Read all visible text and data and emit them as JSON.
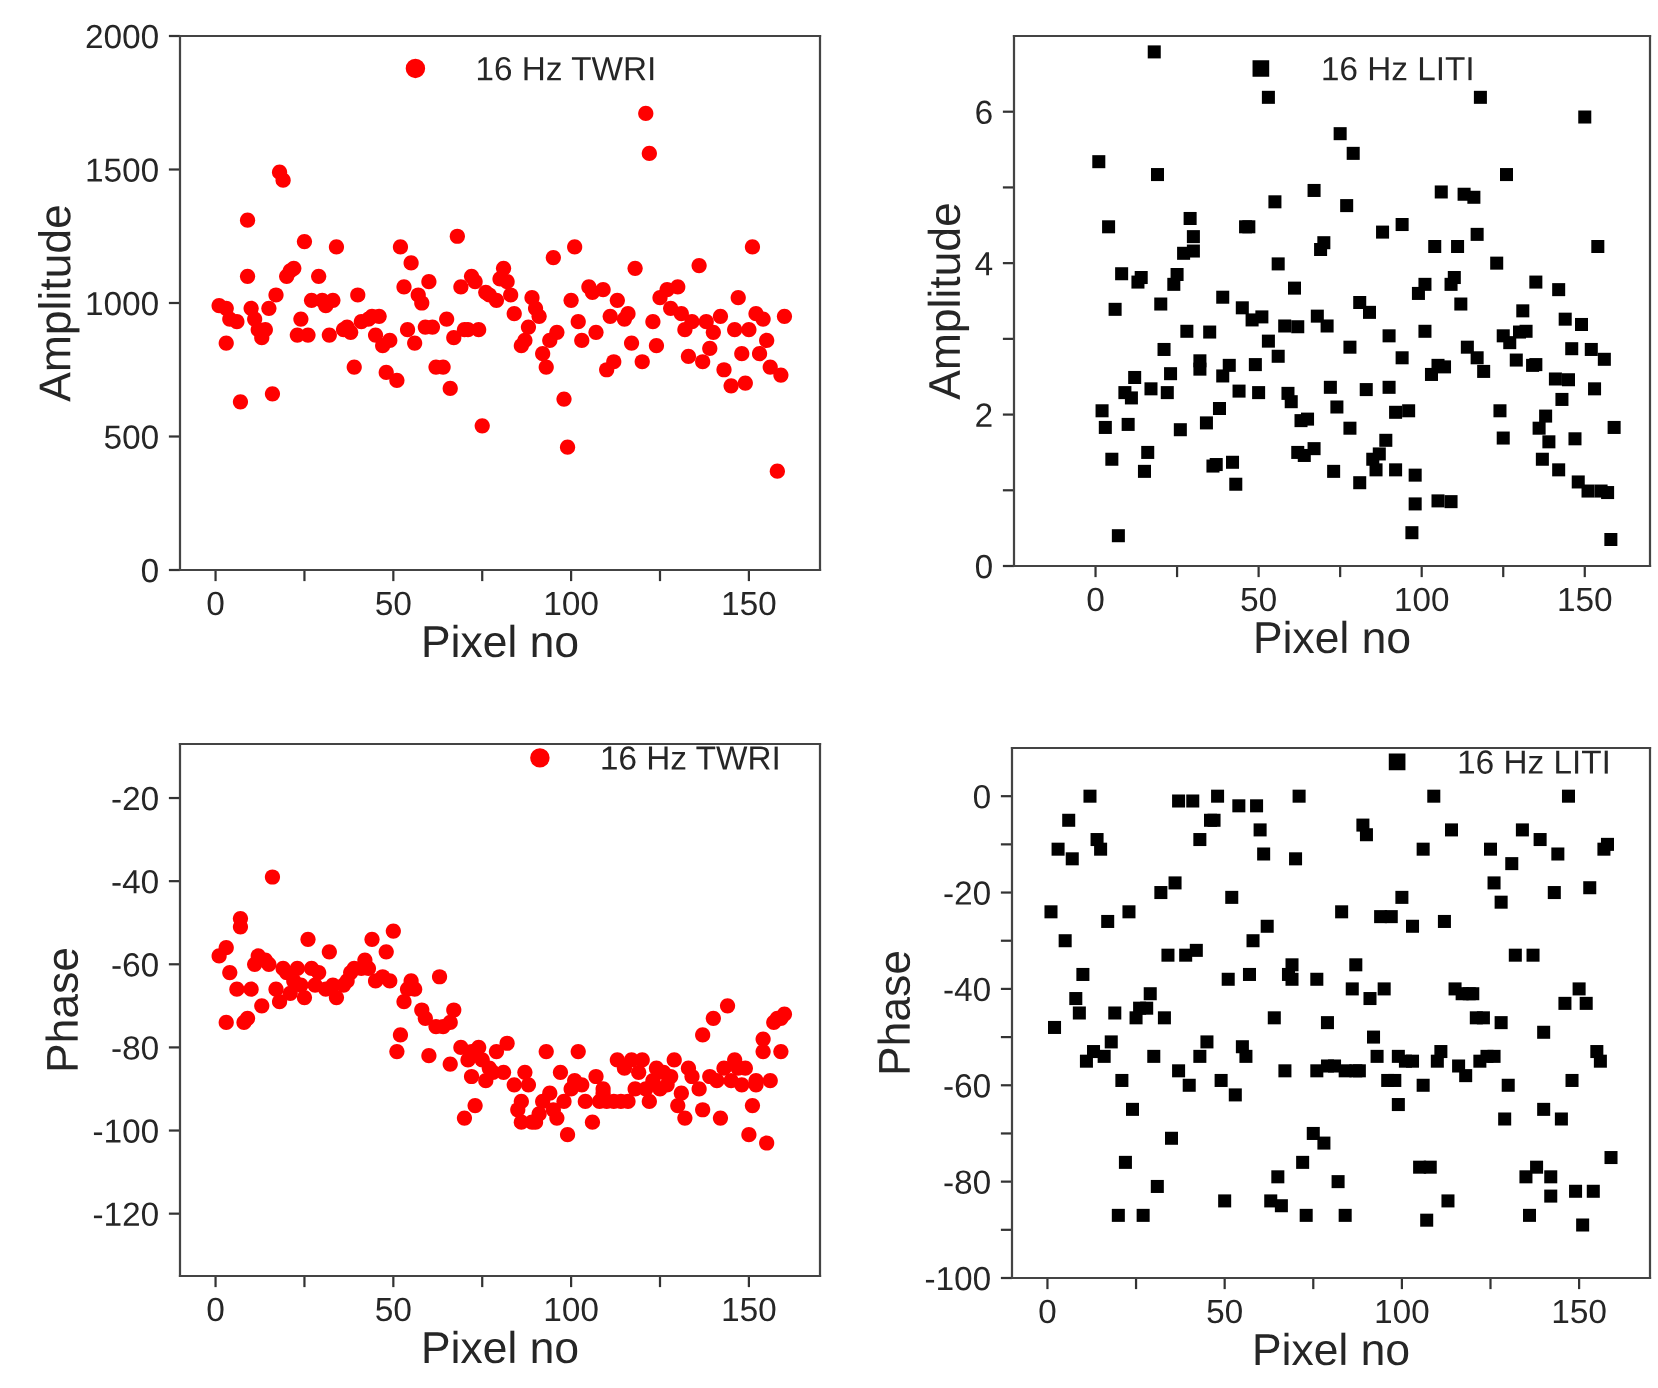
{
  "chart_data": [
    {
      "type": "scatter",
      "xlabel": "Pixel no",
      "ylabel": "Amplitude",
      "xlim": [
        -10,
        170
      ],
      "ylim": [
        0,
        2000
      ],
      "xticks": [
        0,
        {
          "value": 25,
          "label": null
        },
        50,
        {
          "value": 75,
          "label": null
        },
        100,
        {
          "value": 125,
          "label": null
        },
        150
      ],
      "yticks": [
        0,
        500,
        1000,
        1500,
        2000
      ],
      "legend": "top",
      "marker": "circle",
      "series": [
        {
          "name": "16 Hz TWRI",
          "color": "#ff0000",
          "x": [
            1,
            3,
            3,
            4,
            6,
            7,
            9,
            9,
            10,
            11,
            12,
            13,
            14,
            15,
            16,
            17,
            18,
            19,
            20,
            21,
            22,
            23,
            24,
            25,
            26,
            27,
            29,
            30,
            31,
            32,
            33,
            34,
            36,
            37,
            38,
            39,
            40,
            41,
            43,
            44,
            45,
            46,
            47,
            48,
            49,
            51,
            52,
            53,
            54,
            55,
            56,
            57,
            58,
            59,
            60,
            61,
            62,
            64,
            65,
            66,
            67,
            68,
            69,
            70,
            71,
            72,
            73,
            74,
            75,
            76,
            77,
            79,
            80,
            81,
            82,
            83,
            84,
            86,
            87,
            88,
            89,
            90,
            91,
            92,
            93,
            94,
            95,
            96,
            98,
            99,
            100,
            101,
            102,
            103,
            105,
            106,
            107,
            109,
            110,
            111,
            112,
            113,
            115,
            116,
            117,
            118,
            120,
            121,
            122,
            123,
            124,
            125,
            127,
            128,
            130,
            131,
            132,
            133,
            134,
            136,
            137,
            138,
            139,
            140,
            142,
            143,
            145,
            146,
            147,
            148,
            149,
            150,
            151,
            152,
            153,
            154,
            155,
            156,
            158,
            159,
            160
          ],
          "values": [
            990,
            850,
            980,
            940,
            930,
            630,
            1310,
            1100,
            980,
            940,
            900,
            870,
            900,
            980,
            660,
            1030,
            1490,
            1460,
            1100,
            1120,
            1130,
            880,
            940,
            1230,
            880,
            1010,
            1100,
            1010,
            990,
            880,
            1010,
            1210,
            900,
            910,
            890,
            760,
            1030,
            930,
            940,
            950,
            880,
            950,
            840,
            740,
            860,
            710,
            1210,
            1060,
            900,
            1150,
            850,
            1030,
            1000,
            910,
            1080,
            910,
            760,
            760,
            940,
            680,
            870,
            1250,
            1060,
            900,
            900,
            1100,
            1080,
            900,
            540,
            1040,
            1030,
            1010,
            1090,
            1130,
            1080,
            1030,
            960,
            840,
            860,
            910,
            1020,
            980,
            950,
            810,
            760,
            860,
            1170,
            890,
            640,
            460,
            1010,
            1210,
            930,
            860,
            1060,
            1040,
            890,
            1050,
            750,
            950,
            780,
            1010,
            940,
            960,
            850,
            1130,
            780,
            1710,
            1560,
            930,
            840,
            1020,
            1050,
            980,
            1060,
            960,
            900,
            800,
            930,
            1140,
            780,
            930,
            830,
            890,
            950,
            750,
            690,
            900,
            1020,
            810,
            700,
            900,
            1210,
            960,
            810,
            940,
            860,
            760,
            370,
            730,
            950
          ]
        }
      ]
    },
    {
      "type": "scatter",
      "xlabel": "Pixel no",
      "ylabel": "Amplitude",
      "xlim": [
        -25,
        170
      ],
      "ylim": [
        0,
        7
      ],
      "xticks": [
        0,
        {
          "value": 25,
          "label": null
        },
        50,
        {
          "value": 75,
          "label": null
        },
        100,
        {
          "value": 125,
          "label": null
        },
        150
      ],
      "yticks": [
        0,
        {
          "value": 1,
          "label": null
        },
        2,
        {
          "value": 3,
          "label": null
        },
        4,
        {
          "value": 5,
          "label": null
        },
        6
      ],
      "legend": "top",
      "marker": "square",
      "series": [
        {
          "name": "16 Hz LITI",
          "color": "#000000",
          "x": [
            1,
            2,
            3,
            4,
            5,
            6,
            7,
            8,
            9,
            10,
            11,
            12,
            13,
            14,
            15,
            16,
            17,
            18,
            19,
            20,
            21,
            22,
            23,
            24,
            25,
            26,
            27,
            28,
            29,
            30,
            30,
            32,
            32,
            34,
            35,
            36,
            37,
            38,
            39,
            39,
            41,
            42,
            43,
            44,
            45,
            46,
            47,
            48,
            49,
            50,
            51,
            53,
            53,
            55,
            56,
            56,
            58,
            59,
            60,
            61,
            62,
            62,
            63,
            64,
            65,
            67,
            67,
            68,
            69,
            70,
            71,
            72,
            73,
            74,
            75,
            77,
            78,
            78,
            79,
            81,
            81,
            83,
            84,
            85,
            86,
            87,
            88,
            89,
            90,
            90,
            92,
            92,
            94,
            94,
            96,
            97,
            98,
            98,
            99,
            101,
            101,
            103,
            104,
            105,
            105,
            106,
            107,
            109,
            109,
            110,
            111,
            112,
            113,
            114,
            116,
            117,
            117,
            118,
            119,
            123,
            124,
            125,
            125,
            126,
            127,
            129,
            130,
            131,
            132,
            134,
            135,
            135,
            136,
            137,
            138,
            139,
            141,
            142,
            142,
            143,
            144,
            145,
            146,
            147,
            148,
            149,
            150,
            151,
            152,
            153,
            154,
            155,
            156,
            157,
            158,
            159
          ],
          "values": [
            5.34,
            2.05,
            1.83,
            4.48,
            1.41,
            3.39,
            0.4,
            3.86,
            2.29,
            1.87,
            2.22,
            2.49,
            3.75,
            3.81,
            1.25,
            1.5,
            2.34,
            6.79,
            5.17,
            3.46,
            2.86,
            2.29,
            2.54,
            3.72,
            3.85,
            1.8,
            4.13,
            3.1,
            4.59,
            4.16,
            4.35,
            2.71,
            2.6,
            1.89,
            3.09,
            1.32,
            1.34,
            2.08,
            3.55,
            2.51,
            2.65,
            1.37,
            1.08,
            2.31,
            3.41,
            4.48,
            4.48,
            3.25,
            2.66,
            2.29,
            3.29,
            6.19,
            2.97,
            4.81,
            2.77,
            3.99,
            3.17,
            2.28,
            2.17,
            3.67,
            1.5,
            3.16,
            1.92,
            1.46,
            1.94,
            1.55,
            4.96,
            3.3,
            4.18,
            4.27,
            3.17,
            2.36,
            1.25,
            2.1,
            5.71,
            4.76,
            1.82,
            2.89,
            5.45,
            3.48,
            1.1,
            2.33,
            3.35,
            1.41,
            1.27,
            1.48,
            4.41,
            1.66,
            2.36,
            3.04,
            2.03,
            1.27,
            4.51,
            2.75,
            2.05,
            0.44,
            1.2,
            0.82,
            3.6,
            3.1,
            3.72,
            2.53,
            4.22,
            0.86,
            2.65,
            4.94,
            2.63,
            0.85,
            3.72,
            3.81,
            4.22,
            3.46,
            4.91,
            2.89,
            4.87,
            2.75,
            4.38,
            6.19,
            2.57,
            4.0,
            2.05,
            1.69,
            3.04,
            5.17,
            2.95,
            2.72,
            3.09,
            3.37,
            3.1,
            2.65,
            2.66,
            3.75,
            1.82,
            1.41,
            1.98,
            1.64,
            2.47,
            3.65,
            1.27,
            2.2,
            3.26,
            2.46,
            2.87,
            1.68,
            1.11,
            3.19,
            5.93,
            0.99,
            2.86,
            2.34,
            4.22,
            0.99,
            2.73,
            0.97,
            0.35,
            1.83
          ]
        }
      ]
    },
    {
      "type": "scatter",
      "xlabel": "Pixel no",
      "ylabel": "Phase",
      "xlim": [
        -10,
        170
      ],
      "ylim": [
        -135,
        -7
      ],
      "xticks": [
        0,
        {
          "value": 25,
          "label": null
        },
        50,
        {
          "value": 75,
          "label": null
        },
        100,
        {
          "value": 125,
          "label": null
        },
        150
      ],
      "yticks": [
        -120,
        -100,
        -80,
        -60,
        -40,
        -20
      ],
      "legend": "top right",
      "marker": "circle",
      "series": [
        {
          "name": "16 Hz TWRI",
          "color": "#ff0000",
          "x": [
            1,
            3,
            3,
            4,
            6,
            7,
            7,
            8,
            9,
            10,
            11,
            12,
            13,
            14,
            15,
            16,
            17,
            18,
            19,
            20,
            21,
            22,
            23,
            24,
            25,
            26,
            27,
            28,
            29,
            31,
            32,
            33,
            34,
            36,
            37,
            38,
            39,
            41,
            42,
            43,
            44,
            45,
            47,
            48,
            49,
            50,
            51,
            52,
            53,
            54,
            55,
            56,
            58,
            59,
            60,
            62,
            63,
            64,
            66,
            66,
            67,
            69,
            70,
            71,
            72,
            72,
            73,
            74,
            75,
            76,
            77,
            78,
            79,
            81,
            82,
            84,
            85,
            86,
            86,
            87,
            88,
            89,
            90,
            91,
            92,
            93,
            94,
            95,
            96,
            97,
            98,
            99,
            100,
            101,
            102,
            103,
            104,
            106,
            107,
            108,
            109,
            109,
            110,
            112,
            113,
            114,
            115,
            116,
            117,
            118,
            119,
            120,
            121,
            122,
            123,
            124,
            125,
            126,
            127,
            128,
            129,
            130,
            131,
            132,
            133,
            134,
            136,
            137,
            137,
            139,
            140,
            141,
            142,
            143,
            144,
            145,
            146,
            147,
            148,
            149,
            150,
            151,
            152,
            152,
            154,
            154,
            155,
            156,
            157,
            158,
            159,
            159,
            160
          ],
          "values": [
            -58,
            -74,
            -56,
            -62,
            -66,
            -51,
            -49,
            -74,
            -73,
            -66,
            -60,
            -58,
            -70,
            -59,
            -60,
            -39,
            -66,
            -69,
            -61,
            -62,
            -67,
            -64,
            -61,
            -65,
            -68,
            -54,
            -61,
            -65,
            -62,
            -66,
            -57,
            -65,
            -68,
            -65,
            -64,
            -62,
            -61,
            -61,
            -59,
            -61,
            -54,
            -64,
            -63,
            -57,
            -64,
            -52,
            -81,
            -77,
            -69,
            -66,
            -64,
            -66,
            -71,
            -73,
            -82,
            -75,
            -63,
            -75,
            -74,
            -84,
            -71,
            -80,
            -97,
            -83,
            -81,
            -87,
            -94,
            -80,
            -83,
            -88,
            -85,
            -86,
            -81,
            -86,
            -79,
            -89,
            -95,
            -98,
            -93,
            -86,
            -89,
            -98,
            -98,
            -96,
            -93,
            -81,
            -91,
            -95,
            -97,
            -86,
            -93,
            -101,
            -90,
            -88,
            -81,
            -89,
            -93,
            -98,
            -87,
            -93,
            -91,
            -90,
            -93,
            -93,
            -83,
            -93,
            -85,
            -93,
            -83,
            -90,
            -86,
            -83,
            -90,
            -93,
            -88,
            -85,
            -90,
            -86,
            -89,
            -87,
            -83,
            -94,
            -91,
            -97,
            -85,
            -87,
            -90,
            -77,
            -95,
            -87,
            -73,
            -88,
            -97,
            -85,
            -70,
            -88,
            -83,
            -85,
            -89,
            -85,
            -101,
            -94,
            -89,
            -88,
            -78,
            -81,
            -103,
            -88,
            -74,
            -73,
            -73,
            -81,
            -72
          ]
        }
      ]
    },
    {
      "type": "scatter",
      "xlabel": "Pixel no",
      "ylabel": "Phase",
      "xlim": [
        -10,
        170
      ],
      "ylim": [
        -100,
        10
      ],
      "xticks": [
        0,
        {
          "value": 25,
          "label": null
        },
        50,
        {
          "value": 75,
          "label": null
        },
        100,
        {
          "value": 125,
          "label": null
        },
        150
      ],
      "yticks": [
        -100,
        {
          "value": -90,
          "label": null
        },
        -80,
        {
          "value": -70,
          "label": null
        },
        -60,
        {
          "value": -50,
          "label": null
        },
        -40,
        {
          "value": -30,
          "label": null
        },
        -20,
        {
          "value": -10,
          "label": null
        },
        0
      ],
      "legend": "top right",
      "marker": "square",
      "series": [
        {
          "name": "16 Hz LITI",
          "color": "#000000",
          "x": [
            1,
            2,
            3,
            5,
            6,
            7,
            8,
            9,
            10,
            11,
            12,
            13,
            14,
            15,
            16,
            17,
            18,
            19,
            20,
            21,
            22,
            23,
            24,
            25,
            26,
            27,
            28,
            29,
            30,
            31,
            32,
            33,
            34,
            35,
            36,
            37,
            37,
            39,
            40,
            41,
            42,
            43,
            43,
            45,
            46,
            47,
            48,
            49,
            50,
            51,
            52,
            53,
            54,
            55,
            56,
            57,
            58,
            59,
            60,
            61,
            62,
            63,
            64,
            65,
            66,
            67,
            68,
            69,
            69,
            70,
            71,
            72,
            73,
            75,
            76,
            76,
            78,
            79,
            79,
            81,
            82,
            83,
            84,
            84,
            86,
            87,
            87,
            88,
            89,
            90,
            91,
            92,
            93,
            94,
            95,
            96,
            97,
            98,
            99,
            99,
            100,
            101,
            103,
            103,
            105,
            106,
            106,
            107,
            108,
            109,
            110,
            111,
            112,
            113,
            114,
            115,
            116,
            117,
            118,
            119,
            120,
            121,
            122,
            123,
            124,
            125,
            126,
            126,
            128,
            128,
            129,
            130,
            131,
            132,
            134,
            135,
            136,
            137,
            138,
            139,
            140,
            140,
            142,
            142,
            143,
            144,
            145,
            146,
            147,
            148,
            149,
            150,
            151,
            152,
            153,
            154,
            155,
            156,
            157,
            158,
            159
          ],
          "values": [
            -24,
            -48,
            -11,
            -30,
            -5,
            -13,
            -42,
            -45,
            -37,
            -55,
            0,
            -53,
            -9,
            -11,
            -54,
            -26,
            -51,
            -45,
            -87,
            -59,
            -76,
            -24,
            -65,
            -46,
            -44,
            -87,
            -44,
            -41,
            -54,
            -81,
            -20,
            -46,
            -33,
            -71,
            -18,
            -1,
            -57,
            -33,
            -60,
            -1,
            -32,
            -9,
            -54,
            -51,
            -5,
            -5,
            0,
            -59,
            -84,
            -38,
            -21,
            -62,
            -2,
            -52,
            -54,
            -37,
            -30,
            -2,
            -7,
            -12,
            -27,
            -84,
            -46,
            -79,
            -85,
            -57,
            -37,
            -35,
            -38,
            -13,
            0,
            -76,
            -87,
            -70,
            -57,
            -38,
            -72,
            -47,
            -56,
            -56,
            -80,
            -24,
            -87,
            -57,
            -40,
            -35,
            -57,
            -57,
            -6,
            -8,
            -42,
            -50,
            -54,
            -25,
            -40,
            -59,
            -25,
            -59,
            -64,
            -54,
            -21,
            -55,
            -55,
            -27,
            -77,
            -60,
            -11,
            -88,
            -77,
            0,
            -55,
            -53,
            -26,
            -84,
            -7,
            -40,
            -56,
            -41,
            -58,
            -41,
            -41,
            -46,
            -55,
            -46,
            -54,
            -11,
            -54,
            -18,
            -47,
            -22,
            -67,
            -60,
            -14,
            -33,
            -7,
            -79,
            -87,
            -33,
            -77,
            -9,
            -65,
            -49,
            -83,
            -79,
            -20,
            -12,
            -67,
            -43,
            0,
            -59,
            -82,
            -40,
            -89,
            -43,
            -19,
            -82,
            -53,
            -55,
            -11,
            -10,
            -75
          ]
        }
      ]
    }
  ]
}
